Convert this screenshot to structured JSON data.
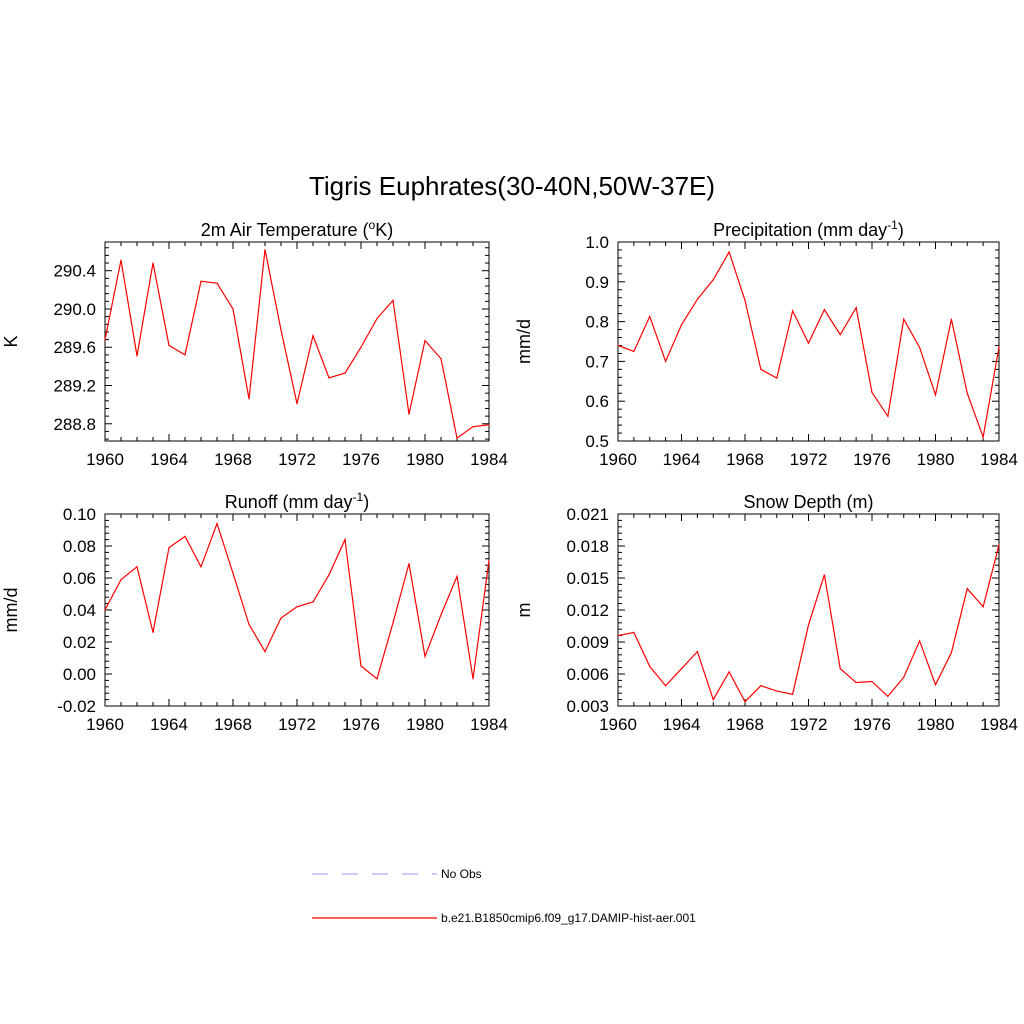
{
  "figure_title": "Tigris Euphrates(30-40N,50W-37E)",
  "legend": [
    {
      "label": "No Obs",
      "color": "#aaaaff",
      "style": "dashed"
    },
    {
      "label": "b.e21.B1850cmip6.f09_g17.DAMIP-hist-aer.001",
      "color": "#ff0000",
      "style": "solid"
    }
  ],
  "chart_data": [
    {
      "type": "line",
      "title": "2m Air Temperature (oK)",
      "title_parts": {
        "pre": "2m Air Temperature (",
        "sup": "o",
        "post": "K)"
      },
      "xlabel": "",
      "ylabel": "K",
      "xlim": [
        1960,
        1984
      ],
      "ylim": [
        288.62,
        290.7
      ],
      "xticks": [
        1960,
        1964,
        1968,
        1972,
        1976,
        1980,
        1984
      ],
      "yticks": [
        288.8,
        289.2,
        289.6,
        290.0,
        290.4
      ],
      "ytick_labels": [
        "288.8",
        "289.2",
        "289.6",
        "290.0",
        "290.4"
      ],
      "grid": false,
      "series": [
        {
          "color": "#ff0000",
          "x": [
            1960,
            1961,
            1962,
            1963,
            1964,
            1965,
            1966,
            1967,
            1968,
            1969,
            1970,
            1971,
            1972,
            1973,
            1974,
            1975,
            1976,
            1977,
            1978,
            1979,
            1980,
            1981,
            1982,
            1983,
            1984
          ],
          "y": [
            289.68,
            290.51,
            289.51,
            290.48,
            289.62,
            289.52,
            290.29,
            290.27,
            290.0,
            289.06,
            290.62,
            289.78,
            289.01,
            289.72,
            289.28,
            289.33,
            289.6,
            289.9,
            290.09,
            288.9,
            289.67,
            289.48,
            288.65,
            288.77,
            288.79
          ]
        }
      ]
    },
    {
      "type": "line",
      "title": "Precipitation (mm day-1)",
      "title_parts": {
        "pre": "Precipitation (mm day",
        "sup": "-1",
        "post": ")"
      },
      "xlabel": "",
      "ylabel": "mm/d",
      "xlim": [
        1960,
        1984
      ],
      "ylim": [
        0.5,
        1.0
      ],
      "xticks": [
        1960,
        1964,
        1968,
        1972,
        1976,
        1980,
        1984
      ],
      "yticks": [
        0.5,
        0.6,
        0.7,
        0.8,
        0.9,
        1.0
      ],
      "ytick_labels": [
        "0.5",
        "0.6",
        "0.7",
        "0.8",
        "0.9",
        "1.0"
      ],
      "grid": false,
      "series": [
        {
          "color": "#ff0000",
          "x": [
            1960,
            1961,
            1962,
            1963,
            1964,
            1965,
            1966,
            1967,
            1968,
            1969,
            1970,
            1971,
            1972,
            1973,
            1974,
            1975,
            1976,
            1977,
            1978,
            1979,
            1980,
            1981,
            1982,
            1983,
            1984
          ],
          "y": [
            0.74,
            0.725,
            0.813,
            0.7,
            0.792,
            0.856,
            0.905,
            0.975,
            0.853,
            0.68,
            0.658,
            0.827,
            0.746,
            0.83,
            0.767,
            0.835,
            0.622,
            0.562,
            0.806,
            0.735,
            0.616,
            0.806,
            0.62,
            0.51,
            0.736
          ]
        }
      ]
    },
    {
      "type": "line",
      "title": "Runoff (mm day-1)",
      "title_parts": {
        "pre": "Runoff (mm day",
        "sup": "-1",
        "post": ")"
      },
      "xlabel": "",
      "ylabel": "mm/d",
      "xlim": [
        1960,
        1984
      ],
      "ylim": [
        -0.02,
        0.1
      ],
      "xticks": [
        1960,
        1964,
        1968,
        1972,
        1976,
        1980,
        1984
      ],
      "yticks": [
        -0.02,
        0.0,
        0.02,
        0.04,
        0.06,
        0.08,
        0.1
      ],
      "ytick_labels": [
        "-0.02",
        "0.00",
        "0.02",
        "0.04",
        "0.06",
        "0.08",
        "0.10"
      ],
      "grid": false,
      "series": [
        {
          "color": "#ff0000",
          "x": [
            1960,
            1961,
            1962,
            1963,
            1964,
            1965,
            1966,
            1967,
            1968,
            1969,
            1970,
            1971,
            1972,
            1973,
            1974,
            1975,
            1976,
            1977,
            1978,
            1979,
            1980,
            1981,
            1982,
            1983,
            1984
          ],
          "y": [
            0.04,
            0.059,
            0.067,
            0.026,
            0.079,
            0.086,
            0.067,
            0.094,
            0.063,
            0.031,
            0.014,
            0.035,
            0.042,
            0.045,
            0.062,
            0.084,
            0.005,
            -0.003,
            0.032,
            0.069,
            0.011,
            0.037,
            0.061,
            -0.003,
            0.071
          ]
        }
      ]
    },
    {
      "type": "line",
      "title": "Snow Depth (m)",
      "title_parts": {
        "pre": "Snow Depth (m)",
        "sup": "",
        "post": ""
      },
      "xlabel": "",
      "ylabel": "m",
      "xlim": [
        1960,
        1984
      ],
      "ylim": [
        0.003,
        0.021
      ],
      "xticks": [
        1960,
        1964,
        1968,
        1972,
        1976,
        1980,
        1984
      ],
      "yticks": [
        0.003,
        0.006,
        0.009,
        0.012,
        0.015,
        0.018,
        0.021
      ],
      "ytick_labels": [
        "0.003",
        "0.006",
        "0.009",
        "0.012",
        "0.015",
        "0.018",
        "0.021"
      ],
      "grid": false,
      "series": [
        {
          "color": "#ff0000",
          "x": [
            1960,
            1961,
            1962,
            1963,
            1964,
            1965,
            1966,
            1967,
            1968,
            1969,
            1970,
            1971,
            1972,
            1973,
            1974,
            1975,
            1976,
            1977,
            1978,
            1979,
            1980,
            1981,
            1982,
            1983,
            1984
          ],
          "y": [
            0.0096,
            0.0099,
            0.0067,
            0.0049,
            0.0065,
            0.0081,
            0.0036,
            0.0062,
            0.0034,
            0.0049,
            0.0044,
            0.0041,
            0.0106,
            0.0153,
            0.0065,
            0.0052,
            0.0053,
            0.0039,
            0.0057,
            0.0091,
            0.005,
            0.008,
            0.014,
            0.0123,
            0.0181
          ]
        }
      ]
    }
  ]
}
